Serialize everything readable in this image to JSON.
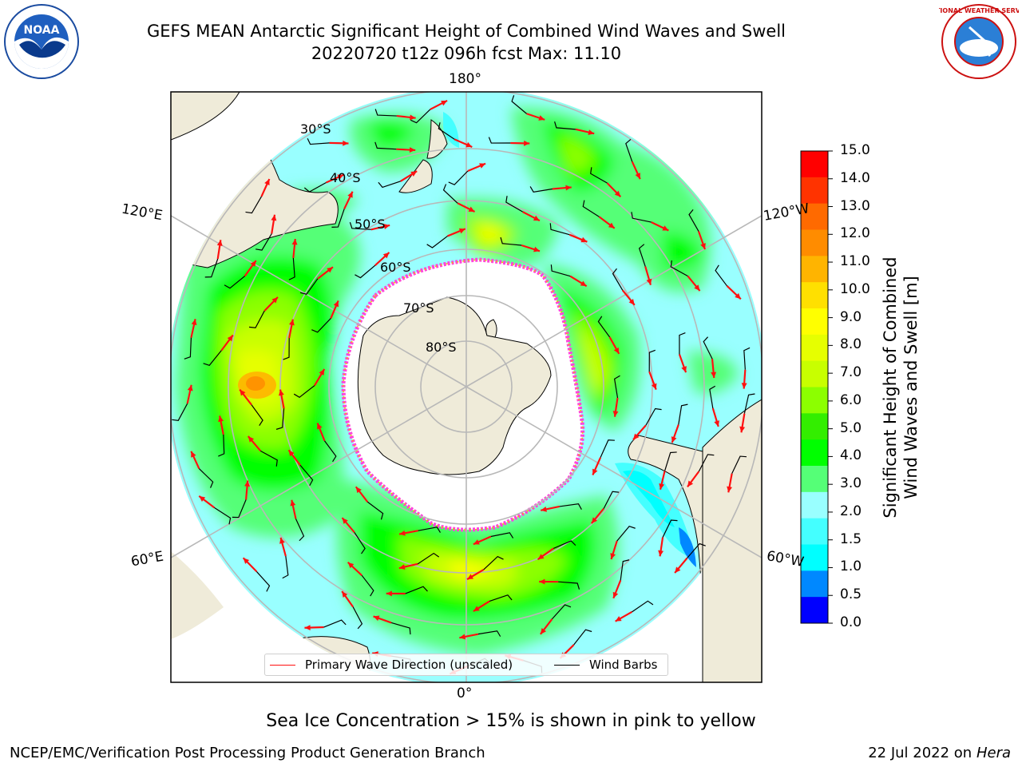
{
  "title": {
    "line1": "GEFS MEAN Antarctic Significant Height of Combined Wind Waves and Swell",
    "line2": "20220720 t12z 096h fcst   Max: 11.10"
  },
  "logos": {
    "left": {
      "icon": "noaa-logo",
      "text": "NOAA"
    },
    "right": {
      "icon": "nws-logo",
      "text": "NATIONAL WEATHER SERVICE"
    }
  },
  "map": {
    "projection": "south-polar-stereographic",
    "longitude_labels": {
      "top": "180°",
      "bottom": "0°",
      "upper_left": "120°E",
      "upper_right": "120°W",
      "lower_left": "60°E",
      "lower_right": "60°W"
    },
    "latitude_labels": [
      "30°S",
      "40°S",
      "50°S",
      "60°S",
      "70°S",
      "80°S"
    ],
    "colors": {
      "land": "#efebd9",
      "sea_ice": "#ffffff",
      "ice_edge": "#ff44dd",
      "arrow": "#ff1010",
      "barb": "#000000",
      "grid": "#b8b8b8"
    }
  },
  "legend": {
    "wave": {
      "label": "Primary Wave Direction (unscaled)",
      "color": "#ff1010"
    },
    "wind": {
      "label": "Wind Barbs",
      "color": "#000000"
    }
  },
  "colorbar": {
    "title": "Significant Height of Combined Wind Waves and Swell [m]",
    "title_line1": "Significant Height of Combined",
    "title_line2": "Wind Waves and Swell [m]",
    "ticks": [
      "15.0",
      "14.0",
      "13.0",
      "12.0",
      "11.0",
      "10.0",
      "9.0",
      "8.0",
      "7.0",
      "6.0",
      "5.0",
      "4.0",
      "3.0",
      "2.0",
      "1.5",
      "1.0",
      "0.5",
      "0.0"
    ],
    "colors_high_to_low": [
      "#ff0000",
      "#ff3300",
      "#ff6a00",
      "#ff8c00",
      "#ffb400",
      "#ffe000",
      "#ffff00",
      "#e6ff00",
      "#c8ff00",
      "#8cff00",
      "#33ee00",
      "#00ff00",
      "#55ff77",
      "#99ffff",
      "#44ffff",
      "#00ffff",
      "#0088ff",
      "#0000ff"
    ]
  },
  "caption": "Sea Ice Concentration > 15% is shown in pink to yellow",
  "footer": {
    "left": "NCEP/EMC/Verification Post Processing Product Generation Branch",
    "right_prefix": "22 Jul 2022 on ",
    "right_host": "Hera"
  }
}
